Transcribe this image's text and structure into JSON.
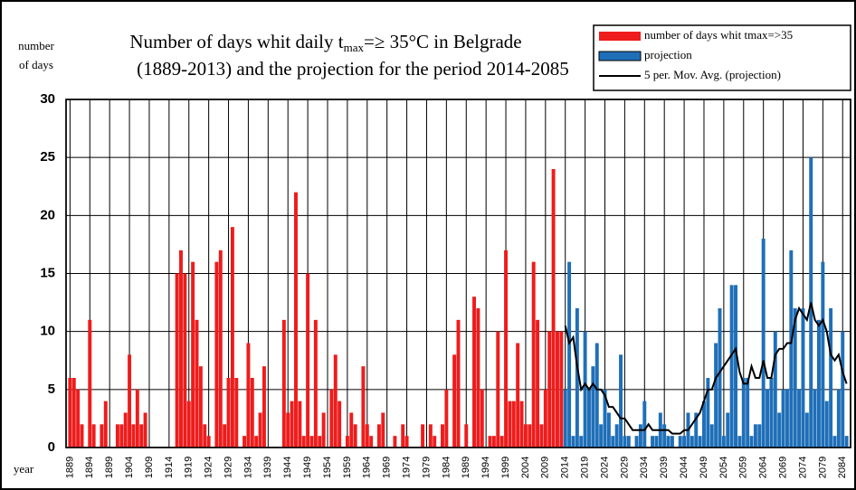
{
  "chart_data": {
    "type": "bar",
    "title_pre": "Number of days whit daily t",
    "title_sub": "max",
    "title_post": "=≥ 35°C in Belgrade",
    "subtitle": "(1889-2013) and the projection for the period 2014-2085",
    "ylabel": [
      "number",
      "of days"
    ],
    "xlabel": "year",
    "xlim": [
      1888,
      2086
    ],
    "ylim": [
      0,
      30
    ],
    "yticks": [
      0,
      5,
      10,
      15,
      20,
      25,
      30
    ],
    "xticks": [
      1889,
      1894,
      1899,
      1904,
      1909,
      1914,
      1919,
      1924,
      1929,
      1934,
      1939,
      1944,
      1949,
      1954,
      1959,
      1964,
      1969,
      1974,
      1979,
      1984,
      1989,
      1994,
      1999,
      2004,
      2009,
      2014,
      2019,
      2024,
      2029,
      2034,
      2039,
      2044,
      2049,
      2054,
      2059,
      2064,
      2069,
      2074,
      2079,
      2084
    ],
    "grid": true,
    "series": [
      {
        "name": "number of days whit tmax=>35",
        "type": "bar",
        "color": "#ee1c1c",
        "x": [
          1889,
          1890,
          1891,
          1892,
          1893,
          1894,
          1895,
          1896,
          1897,
          1898,
          1899,
          1900,
          1901,
          1902,
          1903,
          1904,
          1905,
          1906,
          1907,
          1908,
          1909,
          1910,
          1911,
          1912,
          1913,
          1914,
          1915,
          1916,
          1917,
          1918,
          1919,
          1920,
          1921,
          1922,
          1923,
          1924,
          1925,
          1926,
          1927,
          1928,
          1929,
          1930,
          1931,
          1932,
          1933,
          1934,
          1935,
          1936,
          1937,
          1938,
          1939,
          1940,
          1941,
          1942,
          1943,
          1944,
          1945,
          1946,
          1947,
          1948,
          1949,
          1950,
          1951,
          1952,
          1953,
          1954,
          1955,
          1956,
          1957,
          1958,
          1959,
          1960,
          1961,
          1962,
          1963,
          1964,
          1965,
          1966,
          1967,
          1968,
          1969,
          1970,
          1971,
          1972,
          1973,
          1974,
          1975,
          1976,
          1977,
          1978,
          1979,
          1980,
          1981,
          1982,
          1983,
          1984,
          1985,
          1986,
          1987,
          1988,
          1989,
          1990,
          1991,
          1992,
          1993,
          1994,
          1995,
          1996,
          1997,
          1998,
          1999,
          2000,
          2001,
          2002,
          2003,
          2004,
          2005,
          2006,
          2007,
          2008,
          2009,
          2010,
          2011,
          2012,
          2013
        ],
        "values": [
          6,
          6,
          5,
          2,
          0,
          11,
          2,
          0,
          2,
          4,
          0,
          0,
          2,
          2,
          3,
          8,
          2,
          5,
          2,
          3,
          0,
          0,
          0,
          0,
          0,
          0,
          0,
          15,
          17,
          15,
          4,
          16,
          11,
          7,
          2,
          1,
          0,
          16,
          17,
          2,
          6,
          19,
          6,
          0,
          1,
          9,
          6,
          1,
          3,
          7,
          0,
          0,
          0,
          0,
          11,
          3,
          4,
          22,
          4,
          1,
          15,
          1,
          11,
          1,
          3,
          0,
          5,
          8,
          4,
          0,
          1,
          3,
          2,
          0,
          7,
          2,
          1,
          0,
          2,
          3,
          0,
          0,
          1,
          0,
          2,
          1,
          0,
          0,
          0,
          2,
          0,
          2,
          1,
          0,
          2,
          5,
          0,
          8,
          11,
          0,
          2,
          0,
          13,
          12,
          5,
          0,
          1,
          1,
          10,
          1,
          17,
          4,
          4,
          9,
          4,
          2,
          2,
          16,
          11,
          2,
          5,
          10,
          24,
          10,
          10
        ]
      },
      {
        "name": "projection",
        "type": "bar",
        "color": "#1f6fb8",
        "x": [
          2014,
          2015,
          2016,
          2017,
          2018,
          2019,
          2020,
          2021,
          2022,
          2023,
          2024,
          2025,
          2026,
          2027,
          2028,
          2029,
          2030,
          2031,
          2032,
          2033,
          2034,
          2035,
          2036,
          2037,
          2038,
          2039,
          2040,
          2041,
          2042,
          2043,
          2044,
          2045,
          2046,
          2047,
          2048,
          2049,
          2050,
          2051,
          2052,
          2053,
          2054,
          2055,
          2056,
          2057,
          2058,
          2059,
          2060,
          2061,
          2062,
          2063,
          2064,
          2065,
          2066,
          2067,
          2068,
          2069,
          2070,
          2071,
          2072,
          2073,
          2074,
          2075,
          2076,
          2077,
          2078,
          2079,
          2080,
          2081,
          2082,
          2083,
          2084,
          2085
        ],
        "values": [
          5,
          16,
          1,
          12,
          1,
          10,
          5,
          7,
          9,
          2,
          5,
          3,
          1,
          2,
          8,
          1,
          1,
          0,
          1,
          2,
          4,
          0,
          1,
          1,
          3,
          2,
          1,
          1,
          0,
          1,
          1,
          3,
          1,
          3,
          1,
          4,
          6,
          2,
          9,
          12,
          1,
          3,
          14,
          14,
          1,
          6,
          6,
          1,
          2,
          2,
          18,
          5,
          6,
          10,
          3,
          5,
          5,
          17,
          12,
          5,
          12,
          3,
          25,
          5,
          11,
          16,
          4,
          12,
          1,
          5,
          10,
          1
        ]
      },
      {
        "name": "5 per. Mov. Avg. (projection)",
        "type": "line",
        "color": "#000000",
        "x": [
          2014,
          2015,
          2016,
          2017,
          2018,
          2019,
          2020,
          2021,
          2022,
          2023,
          2024,
          2025,
          2026,
          2027,
          2028,
          2029,
          2030,
          2031,
          2032,
          2033,
          2034,
          2035,
          2036,
          2037,
          2038,
          2039,
          2040,
          2041,
          2042,
          2043,
          2044,
          2045,
          2046,
          2047,
          2048,
          2049,
          2050,
          2051,
          2052,
          2053,
          2054,
          2055,
          2056,
          2057,
          2058,
          2059,
          2060,
          2061,
          2062,
          2063,
          2064,
          2065,
          2066,
          2067,
          2068,
          2069,
          2070,
          2071,
          2072,
          2073,
          2074,
          2075,
          2076,
          2077,
          2078,
          2079,
          2080,
          2081,
          2082,
          2083,
          2084,
          2085
        ],
        "values": [
          10.5,
          9,
          9.5,
          7,
          5,
          5.5,
          5,
          5.5,
          5,
          5,
          4.5,
          3.5,
          3.5,
          3,
          2.5,
          2.5,
          2,
          1.5,
          1.5,
          1.5,
          1.5,
          2,
          1.5,
          1.5,
          1.5,
          1.5,
          1.5,
          1.2,
          1.2,
          1.2,
          1.5,
          1.5,
          2,
          2.5,
          3,
          4,
          5,
          5,
          6,
          6.5,
          7,
          7.5,
          8,
          8.5,
          6.5,
          5.5,
          5.5,
          7,
          6,
          6,
          7.5,
          6,
          6,
          8,
          8.5,
          8.5,
          9,
          9,
          11,
          12,
          11.5,
          11,
          12.5,
          11,
          10.5,
          11,
          10,
          8,
          7.5,
          8,
          6.5,
          5.5
        ]
      }
    ]
  }
}
